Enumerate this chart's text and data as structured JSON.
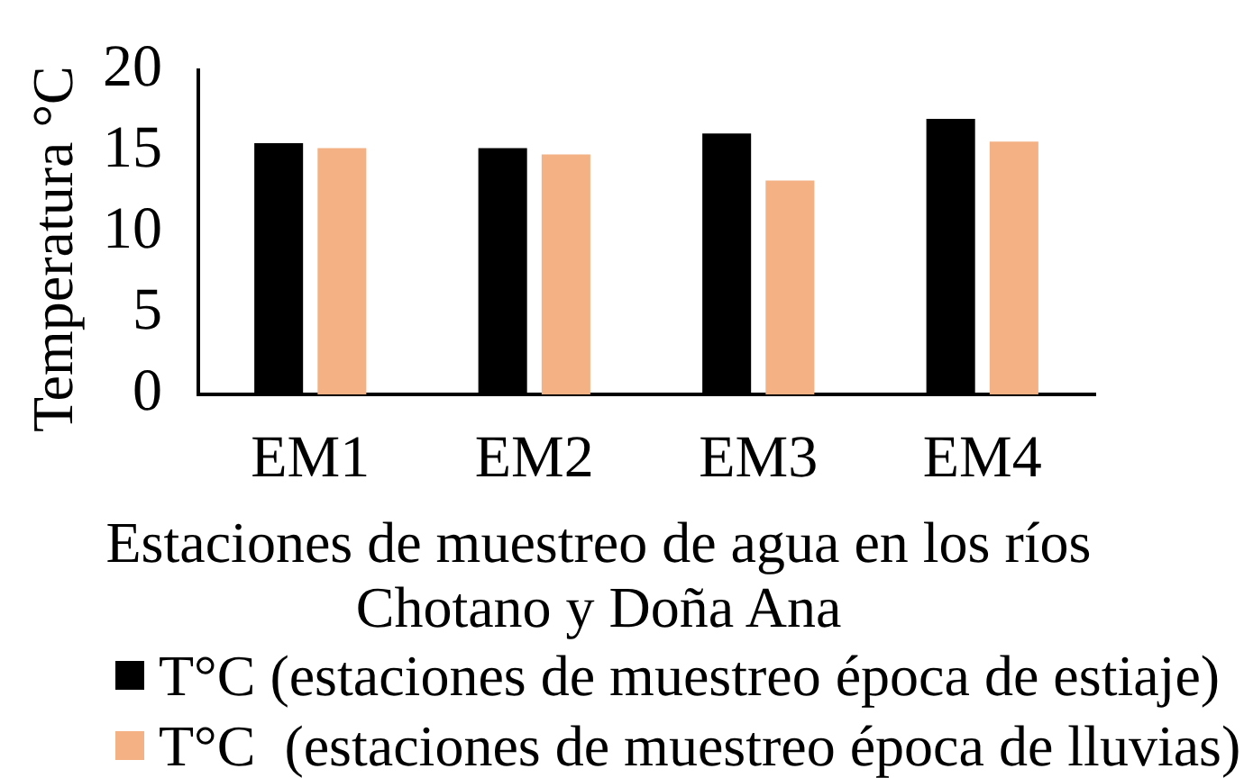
{
  "chart_data": {
    "type": "bar",
    "ylabel": "Temperatura °C",
    "xlabel": "Estaciones de muestreo de agua en los ríos Chotano y Doña Ana",
    "categories": [
      "EM1",
      "EM2",
      "EM3",
      "EM4"
    ],
    "series": [
      {
        "name": "T°C (estaciones de muestreo época de estiaje)",
        "color": "#000000",
        "values": [
          15.5,
          15.2,
          16.1,
          17.0
        ]
      },
      {
        "name": "T°C  (estaciones de muestreo época de lluvias)",
        "color": "#f4b183",
        "values": [
          15.2,
          14.8,
          13.2,
          15.6
        ]
      }
    ],
    "ylim": [
      0,
      20
    ],
    "yticks": [
      0,
      5,
      10,
      15,
      20
    ],
    "grid": false,
    "legend": "bottom"
  }
}
